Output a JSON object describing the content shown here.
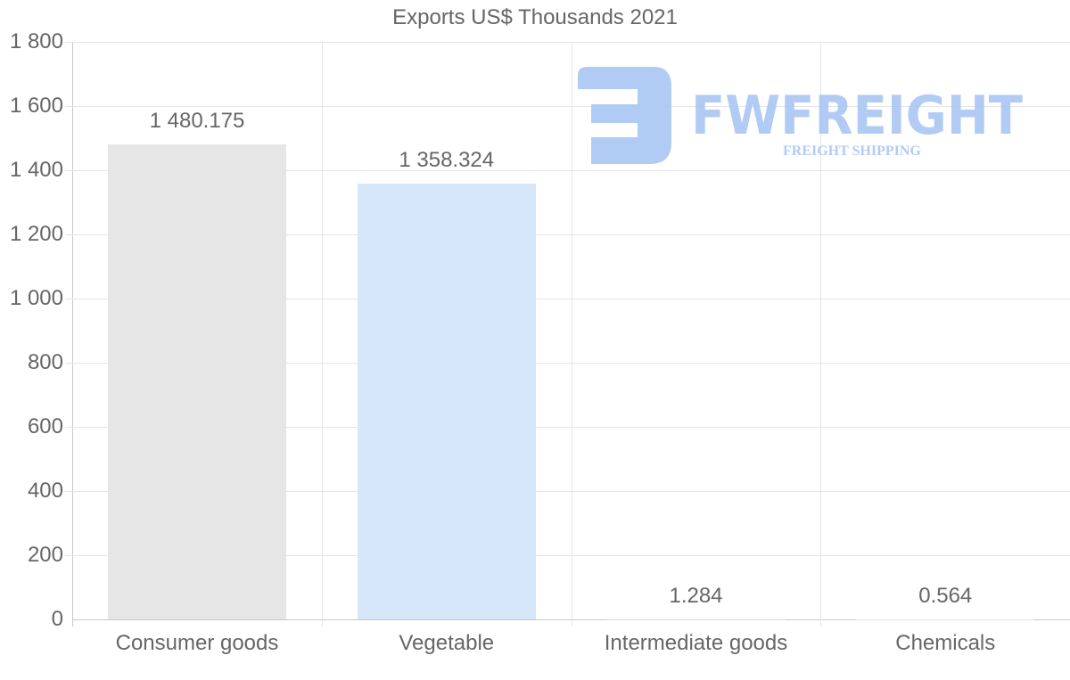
{
  "chart_data": {
    "type": "bar",
    "title": "Exports US$ Thousands 2021",
    "categories": [
      "Consumer goods",
      "Vegetable",
      "Intermediate goods",
      "Chemicals"
    ],
    "values": [
      1480.175,
      1358.324,
      1.284,
      0.564
    ],
    "value_labels": [
      "1 480.175",
      "1 358.324",
      "1.284",
      "0.564"
    ],
    "bar_colors": [
      "#e6e6e6",
      "#d6e7fa",
      "#c9dbf5",
      "#e6e6e6"
    ],
    "xlabel": "",
    "ylabel": "",
    "ylim": [
      0,
      1800
    ],
    "yticks": [
      0,
      200,
      400,
      600,
      800,
      1000,
      1200,
      1400,
      1600,
      1800
    ],
    "ytick_labels": [
      "0",
      "200",
      "400",
      "600",
      "800",
      "1 000",
      "1 200",
      "1 400",
      "1 600",
      "1 800"
    ],
    "grid": true,
    "legend": false
  },
  "watermark": {
    "brand": "FWFREIGHT",
    "tagline": "FREIGHT SHIPPING",
    "color": "#a9c6f3"
  }
}
